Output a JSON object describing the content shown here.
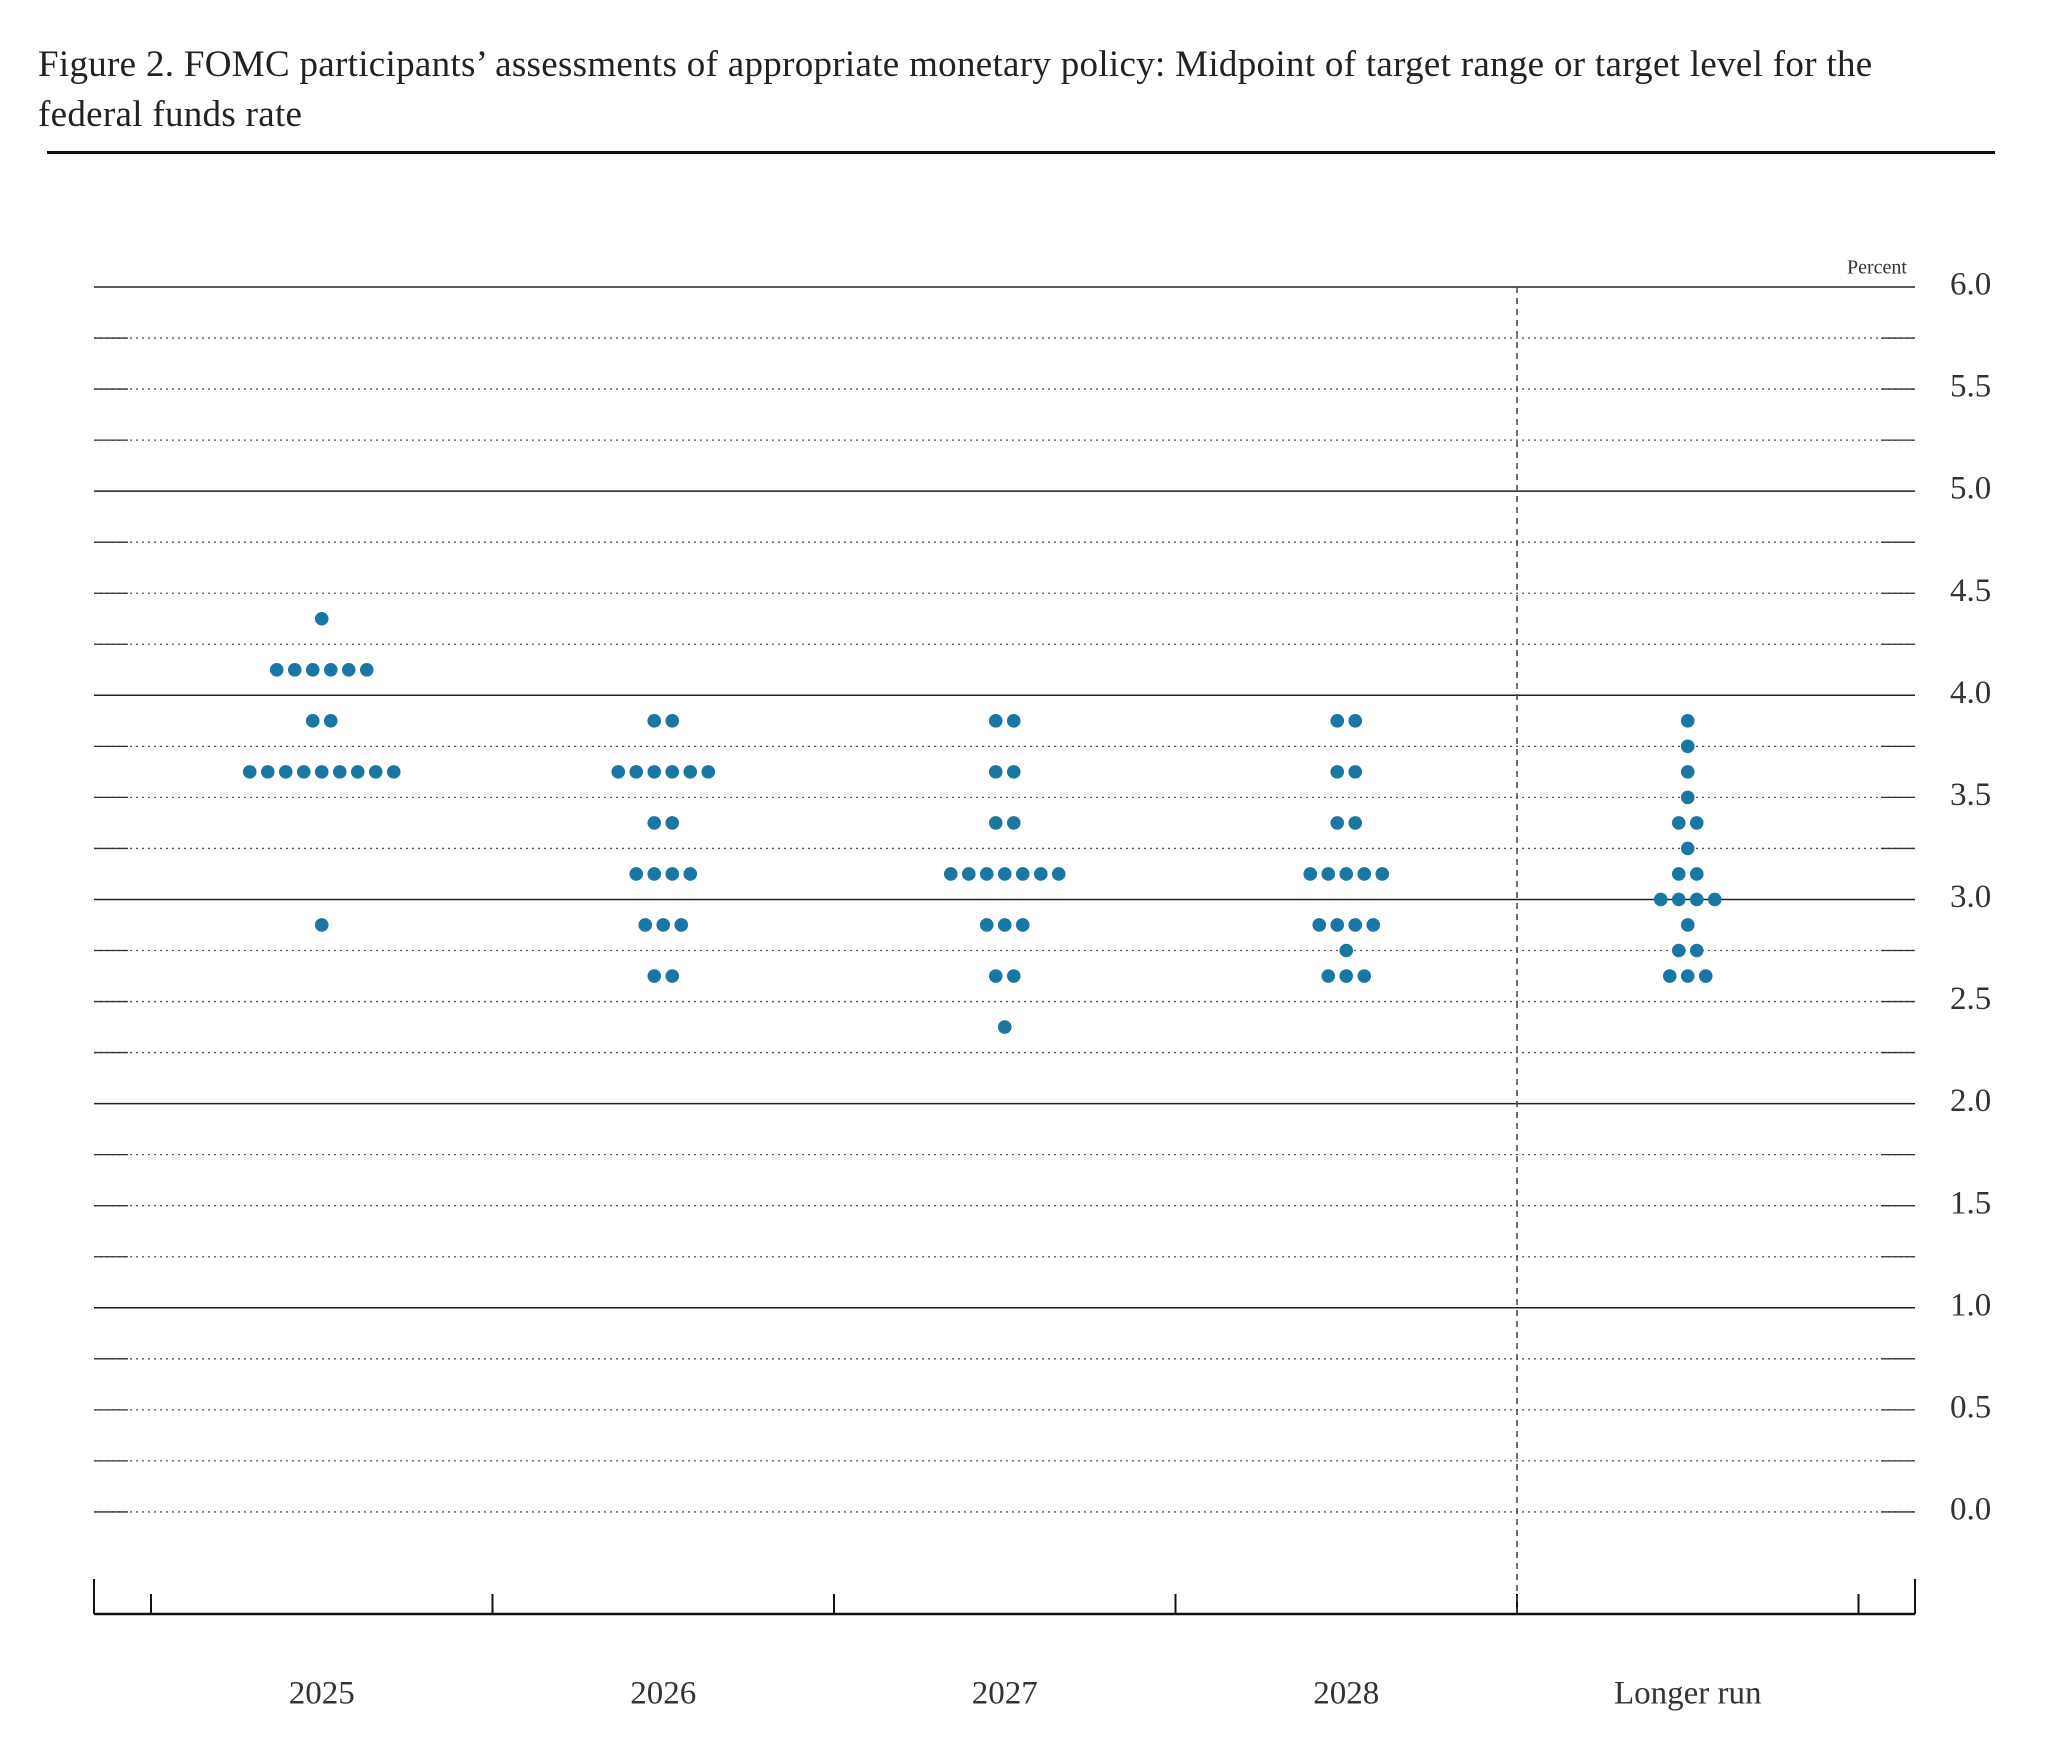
{
  "chart_data": {
    "type": "dot",
    "title": "Figure 2. FOMC participants’ assessments of appropriate monetary policy: Midpoint of target range or target level for the federal funds rate",
    "y_label": "Percent",
    "categories": [
      "2025",
      "2026",
      "2027",
      "2028",
      "Longer run"
    ],
    "values": [
      [
        4.375,
        4.125,
        4.125,
        4.125,
        4.125,
        4.125,
        4.125,
        3.875,
        3.875,
        3.625,
        3.625,
        3.625,
        3.625,
        3.625,
        3.625,
        3.625,
        3.625,
        3.625,
        2.875
      ],
      [
        3.875,
        3.875,
        3.625,
        3.625,
        3.625,
        3.625,
        3.625,
        3.625,
        3.375,
        3.375,
        3.125,
        3.125,
        3.125,
        3.125,
        2.875,
        2.875,
        2.875,
        2.625,
        2.625
      ],
      [
        3.875,
        3.875,
        3.625,
        3.625,
        3.375,
        3.375,
        3.125,
        3.125,
        3.125,
        3.125,
        3.125,
        3.125,
        3.125,
        2.875,
        2.875,
        2.875,
        2.625,
        2.625,
        2.375
      ],
      [
        3.875,
        3.875,
        3.625,
        3.625,
        3.375,
        3.375,
        3.125,
        3.125,
        3.125,
        3.125,
        3.125,
        2.875,
        2.875,
        2.875,
        2.875,
        2.75,
        2.625,
        2.625,
        2.625
      ],
      [
        3.875,
        3.75,
        3.625,
        3.5,
        3.375,
        3.375,
        3.25,
        3.125,
        3.125,
        3.0,
        3.0,
        3.0,
        3.0,
        2.875,
        2.75,
        2.75,
        2.625,
        2.625,
        2.625
      ]
    ],
    "color": "#1c76a3",
    "ylim": [
      -0.5,
      6.0
    ],
    "yticks": [
      {
        "value": 0,
        "label": "0.0"
      },
      {
        "value": 0.5,
        "label": "0.5"
      },
      {
        "value": 1,
        "label": "1.0"
      },
      {
        "value": 1.5,
        "label": "1.5"
      },
      {
        "value": 2,
        "label": "2.0"
      },
      {
        "value": 2.5,
        "label": "2.5"
      },
      {
        "value": 3,
        "label": "3.0"
      },
      {
        "value": 3.5,
        "label": "3.5"
      },
      {
        "value": 4,
        "label": "4.0"
      },
      {
        "value": 4.5,
        "label": "4.5"
      },
      {
        "value": 5,
        "label": "5.0"
      },
      {
        "value": 5.5,
        "label": "5.5"
      },
      {
        "value": 6,
        "label": "6.0"
      }
    ],
    "minor_yticks": [
      0.25,
      0.75,
      1.25,
      1.75,
      2.25,
      2.75,
      3.25,
      3.75,
      4.25,
      4.75,
      5.25,
      5.75
    ],
    "grid": true
  }
}
